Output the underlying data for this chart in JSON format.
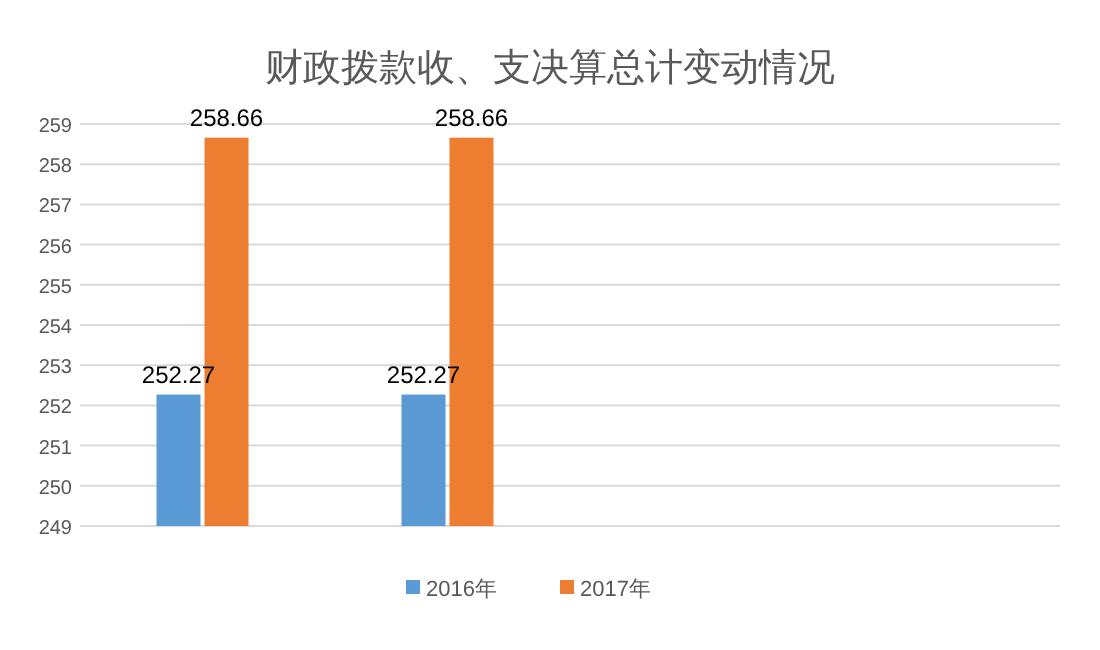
{
  "chart_data": {
    "type": "bar",
    "title": "财政拨款收、支决算总计变动情况",
    "categories": [
      null,
      null,
      null,
      null
    ],
    "series": [
      {
        "name": "2016年",
        "color": "#5b9bd5",
        "values": [
          252.27,
          252.27,
          null,
          null
        ]
      },
      {
        "name": "2017年",
        "color": "#ed7d31",
        "values": [
          258.66,
          258.66,
          null,
          null
        ]
      }
    ],
    "ylim": [
      249,
      259
    ],
    "yticks": [
      249,
      250,
      251,
      252,
      253,
      254,
      255,
      256,
      257,
      258,
      259
    ],
    "grid": "y",
    "legend": "bottom",
    "data_labels": true
  }
}
